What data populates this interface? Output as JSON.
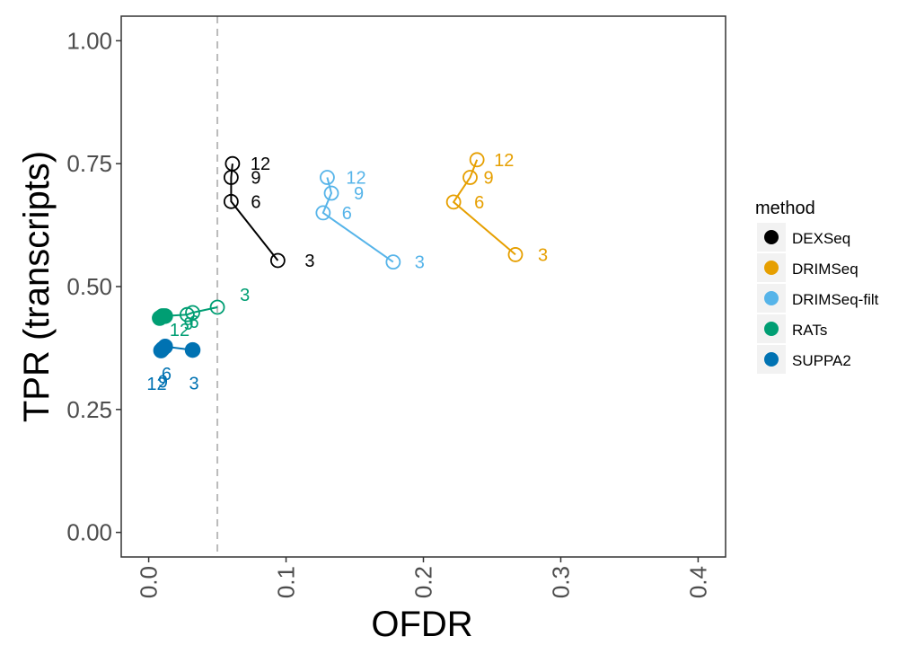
{
  "chart_data": {
    "type": "line",
    "title": "",
    "xlabel": "OFDR",
    "ylabel": "TPR (transcripts)",
    "xlim": [
      -0.02,
      0.42
    ],
    "ylim": [
      -0.05,
      1.05
    ],
    "xticks": [
      0.0,
      0.1,
      0.2,
      0.3,
      0.4
    ],
    "xtick_labels": [
      "0.0",
      "0.1",
      "0.2",
      "0.3",
      "0.4"
    ],
    "yticks": [
      0.0,
      0.25,
      0.5,
      0.75,
      1.0
    ],
    "ytick_labels": [
      "0.00",
      "0.25",
      "0.50",
      "0.75",
      "1.00"
    ],
    "reference_line": {
      "x": 0.05,
      "style": "dashed",
      "color": "#bbbbbb"
    },
    "grid": false,
    "legend": {
      "title": "method",
      "position": "right"
    },
    "series": [
      {
        "name": "DEXSeq",
        "color": "#000000",
        "points": [
          {
            "label": "3",
            "x": 0.094,
            "y": 0.553,
            "sig": false
          },
          {
            "label": "6",
            "x": 0.06,
            "y": 0.673,
            "sig": false
          },
          {
            "label": "9",
            "x": 0.06,
            "y": 0.722,
            "sig": false
          },
          {
            "label": "12",
            "x": 0.061,
            "y": 0.75,
            "sig": false
          }
        ]
      },
      {
        "name": "DRIMSeq",
        "color": "#E69F00",
        "points": [
          {
            "label": "3",
            "x": 0.267,
            "y": 0.565,
            "sig": false
          },
          {
            "label": "6",
            "x": 0.222,
            "y": 0.672,
            "sig": false
          },
          {
            "label": "9",
            "x": 0.234,
            "y": 0.722,
            "sig": false
          },
          {
            "label": "12",
            "x": 0.239,
            "y": 0.758,
            "sig": false
          }
        ]
      },
      {
        "name": "DRIMSeq-filt",
        "color": "#56B4E9",
        "points": [
          {
            "label": "3",
            "x": 0.178,
            "y": 0.55,
            "sig": false
          },
          {
            "label": "6",
            "x": 0.127,
            "y": 0.65,
            "sig": false
          },
          {
            "label": "9",
            "x": 0.133,
            "y": 0.69,
            "sig": false
          },
          {
            "label": "12",
            "x": 0.13,
            "y": 0.722,
            "sig": false
          }
        ]
      },
      {
        "name": "RATs",
        "color": "#009E73",
        "points": [
          {
            "label": "3",
            "x": 0.05,
            "y": 0.458,
            "sig": false
          },
          {
            "label": "6",
            "x": 0.032,
            "y": 0.447,
            "sig": false
          },
          {
            "label": "9",
            "x": 0.028,
            "y": 0.443,
            "sig": false
          },
          {
            "label": "12",
            "x": 0.012,
            "y": 0.44,
            "sig": true
          },
          {
            "label": "",
            "x": 0.01,
            "y": 0.44,
            "sig": true
          },
          {
            "label": "",
            "x": 0.008,
            "y": 0.436,
            "sig": true
          }
        ]
      },
      {
        "name": "SUPPA2",
        "color": "#0072B2",
        "points": [
          {
            "label": "3",
            "x": 0.032,
            "y": 0.371,
            "sig": true
          },
          {
            "label": "6",
            "x": 0.012,
            "y": 0.378,
            "sig": true
          },
          {
            "label": "9",
            "x": 0.01,
            "y": 0.373,
            "sig": true
          },
          {
            "label": "12",
            "x": 0.009,
            "y": 0.37,
            "sig": true
          }
        ]
      }
    ]
  }
}
